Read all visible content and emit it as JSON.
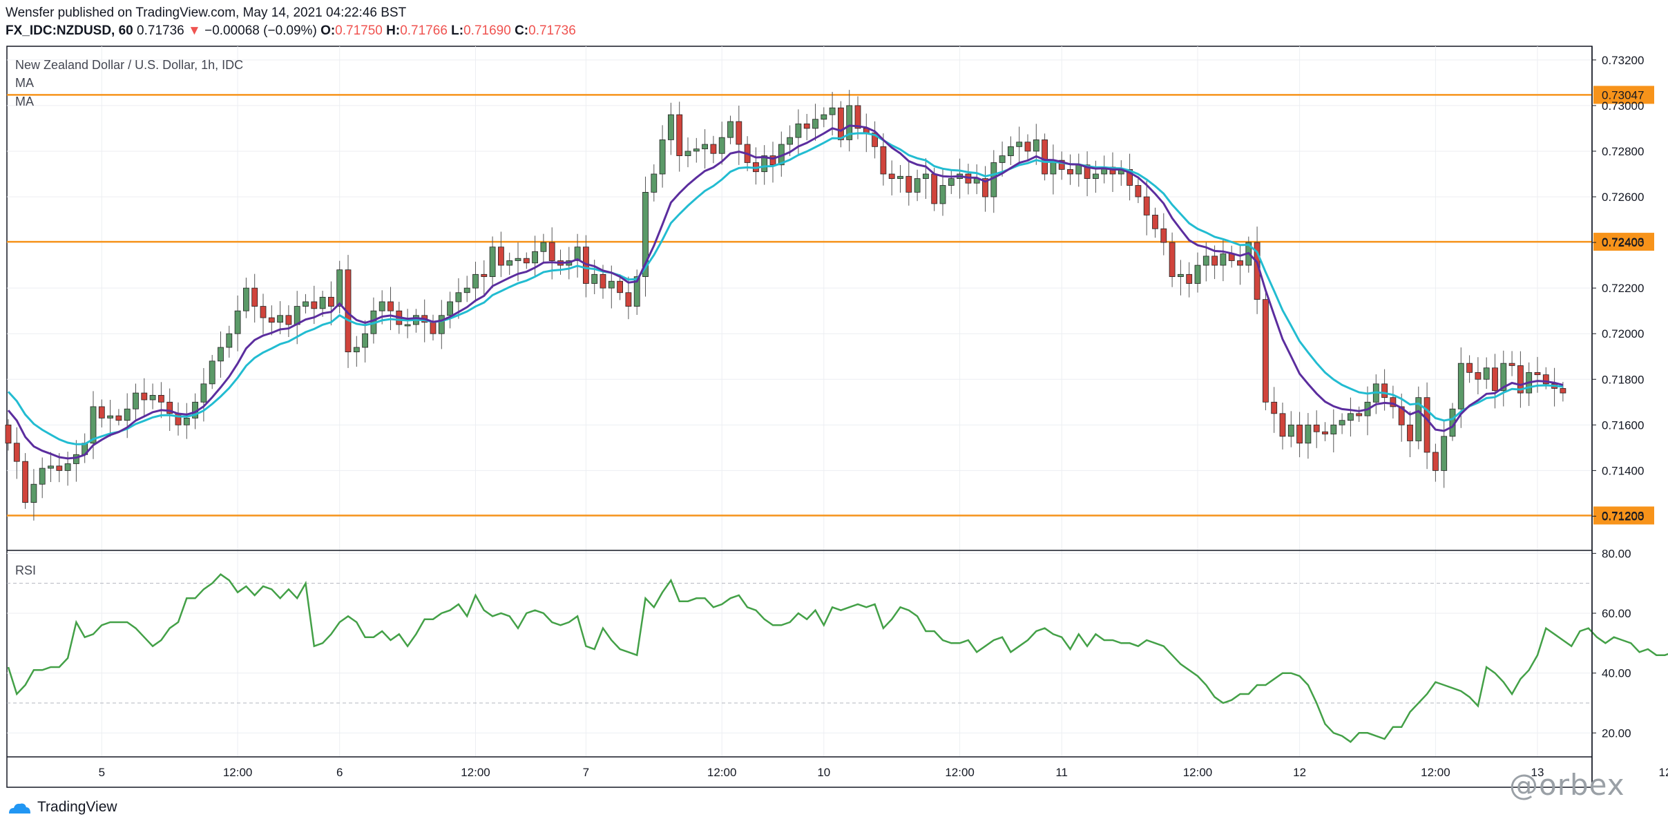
{
  "header": {
    "publisher_line": "Wensfer published on TradingView.com, May 14, 2021 04:22:46 BST",
    "symbol": "FX_IDC:NZDUSD, 60",
    "last": "0.71736",
    "arrow": "▼",
    "change": "−0.00068 (−0.09%)",
    "o_label": "O:",
    "o_value": "0.71750",
    "h_label": "H:",
    "h_value": "0.71766",
    "l_label": "L:",
    "l_value": "0.71690",
    "c_label": "C:",
    "c_value": "0.71736"
  },
  "colors": {
    "up": "#4caf50",
    "up_body": "#5b9a68",
    "down": "#d0443c",
    "ma_fast": "#5b2d9e",
    "ma_slow": "#22bcd1",
    "level": "#f7931a",
    "rsi": "#43a047"
  },
  "footer": {
    "brand": "TradingView"
  },
  "watermark": "@orbex",
  "chart_data": [
    {
      "type": "candlestick",
      "title": "New Zealand Dollar / U.S. Dollar, 1h, IDC",
      "legend": [
        "MA",
        "MA"
      ],
      "x_tick_labels": [
        "5",
        "12:00",
        "6",
        "12:00",
        "7",
        "12:00",
        "10",
        "12:00",
        "11",
        "12:00",
        "12",
        "12:00",
        "13",
        "12:00",
        "1"
      ],
      "y_tick_labels": [
        "0.73200",
        "0.73000",
        "0.72800",
        "0.72600",
        "0.72400",
        "0.72200",
        "0.72000",
        "0.71800",
        "0.71600",
        "0.71400",
        "0.71200"
      ],
      "ylim": [
        0.7105,
        0.7326
      ],
      "horizontal_levels": [
        {
          "value": 0.73047,
          "label": "0.73047"
        },
        {
          "value": 0.72403,
          "label": "0.72403"
        },
        {
          "value": 0.71203,
          "label": "0.71203"
        }
      ],
      "close": [
        0.7152,
        0.7144,
        0.7126,
        0.7134,
        0.7141,
        0.7142,
        0.714,
        0.7143,
        0.7147,
        0.7152,
        0.7168,
        0.7163,
        0.7164,
        0.7162,
        0.7167,
        0.7174,
        0.7171,
        0.7173,
        0.717,
        0.7165,
        0.716,
        0.7163,
        0.717,
        0.7178,
        0.7188,
        0.7194,
        0.72,
        0.721,
        0.722,
        0.7212,
        0.7207,
        0.7205,
        0.7208,
        0.7204,
        0.7212,
        0.7214,
        0.7211,
        0.7216,
        0.7212,
        0.7228,
        0.7192,
        0.7194,
        0.72,
        0.721,
        0.7214,
        0.721,
        0.7204,
        0.7204,
        0.7208,
        0.7205,
        0.72,
        0.7208,
        0.7214,
        0.7218,
        0.722,
        0.7226,
        0.7225,
        0.7238,
        0.723,
        0.7232,
        0.7233,
        0.7231,
        0.7236,
        0.724,
        0.7232,
        0.723,
        0.7232,
        0.7238,
        0.7222,
        0.7226,
        0.722,
        0.7223,
        0.7218,
        0.7212,
        0.7225,
        0.7262,
        0.727,
        0.7285,
        0.7296,
        0.7278,
        0.728,
        0.7281,
        0.7283,
        0.7279,
        0.7286,
        0.7293,
        0.7283,
        0.7275,
        0.7271,
        0.7278,
        0.7274,
        0.7283,
        0.7286,
        0.7292,
        0.729,
        0.7294,
        0.7296,
        0.7299,
        0.7285,
        0.73,
        0.729,
        0.7288,
        0.7282,
        0.727,
        0.7268,
        0.7269,
        0.7262,
        0.7268,
        0.727,
        0.7257,
        0.7265,
        0.7268,
        0.727,
        0.7266,
        0.7268,
        0.726,
        0.7275,
        0.7278,
        0.7282,
        0.7284,
        0.728,
        0.7285,
        0.727,
        0.7276,
        0.7272,
        0.727,
        0.7274,
        0.7268,
        0.727,
        0.7273,
        0.727,
        0.7272,
        0.7265,
        0.726,
        0.7252,
        0.7246,
        0.724,
        0.7225,
        0.7226,
        0.7222,
        0.723,
        0.7234,
        0.723,
        0.7235,
        0.7232,
        0.723,
        0.724,
        0.7215,
        0.717,
        0.7165,
        0.7155,
        0.716,
        0.7152,
        0.716,
        0.7157,
        0.7156,
        0.716,
        0.7162,
        0.7165,
        0.7164,
        0.717,
        0.7178,
        0.7172,
        0.7168,
        0.716,
        0.7153,
        0.7172,
        0.7148,
        0.714,
        0.7155,
        0.7167,
        0.7187,
        0.7183,
        0.718,
        0.7185,
        0.7175,
        0.7187,
        0.7186,
        0.7174,
        0.7183,
        0.7182,
        0.7178,
        0.7176,
        0.7174
      ]
    },
    {
      "type": "line",
      "title": "RSI",
      "y_tick_labels": [
        "80.00",
        "60.00",
        "40.00",
        "20.00"
      ],
      "ylim": [
        12,
        81
      ],
      "reference_levels": [
        70,
        30
      ],
      "values": [
        42,
        33,
        36,
        41,
        41,
        42,
        42,
        45,
        57,
        52,
        53,
        56,
        57,
        57,
        57,
        55,
        52,
        49,
        51,
        55,
        57,
        65,
        65,
        68,
        70,
        73,
        71,
        67,
        69,
        66,
        69,
        68,
        65,
        68,
        65,
        70,
        49,
        50,
        53,
        57,
        59,
        57,
        52,
        52,
        54,
        51,
        53,
        49,
        53,
        58,
        58,
        60,
        61,
        63,
        59,
        66,
        61,
        59,
        60,
        59,
        55,
        60,
        61,
        60,
        57,
        56,
        57,
        59,
        49,
        48,
        55,
        51,
        48,
        47,
        46,
        65,
        62,
        67,
        71,
        64,
        64,
        65,
        65,
        62,
        63,
        65,
        66,
        62,
        61,
        58,
        56,
        56,
        57,
        60,
        58,
        61,
        56,
        62,
        61,
        62,
        63,
        62,
        63,
        55,
        58,
        62,
        61,
        59,
        54,
        54,
        51,
        50,
        50,
        51,
        47,
        49,
        51,
        52,
        47,
        49,
        51,
        54,
        55,
        53,
        52,
        48,
        53,
        49,
        53,
        51,
        51,
        50,
        50,
        49,
        51,
        50,
        49,
        46,
        43,
        41,
        39,
        36,
        32,
        30,
        31,
        33,
        33,
        36,
        36,
        38,
        40,
        40,
        39,
        36,
        30,
        23,
        20,
        19,
        17,
        20,
        20,
        19,
        18,
        22,
        22,
        27,
        30,
        33,
        37,
        36,
        35,
        34,
        32,
        29,
        42,
        40,
        37,
        33,
        38,
        41,
        46,
        55,
        53,
        51,
        49,
        54,
        55,
        52,
        50,
        52,
        51,
        50,
        47,
        48,
        46,
        46,
        47
      ]
    }
  ]
}
